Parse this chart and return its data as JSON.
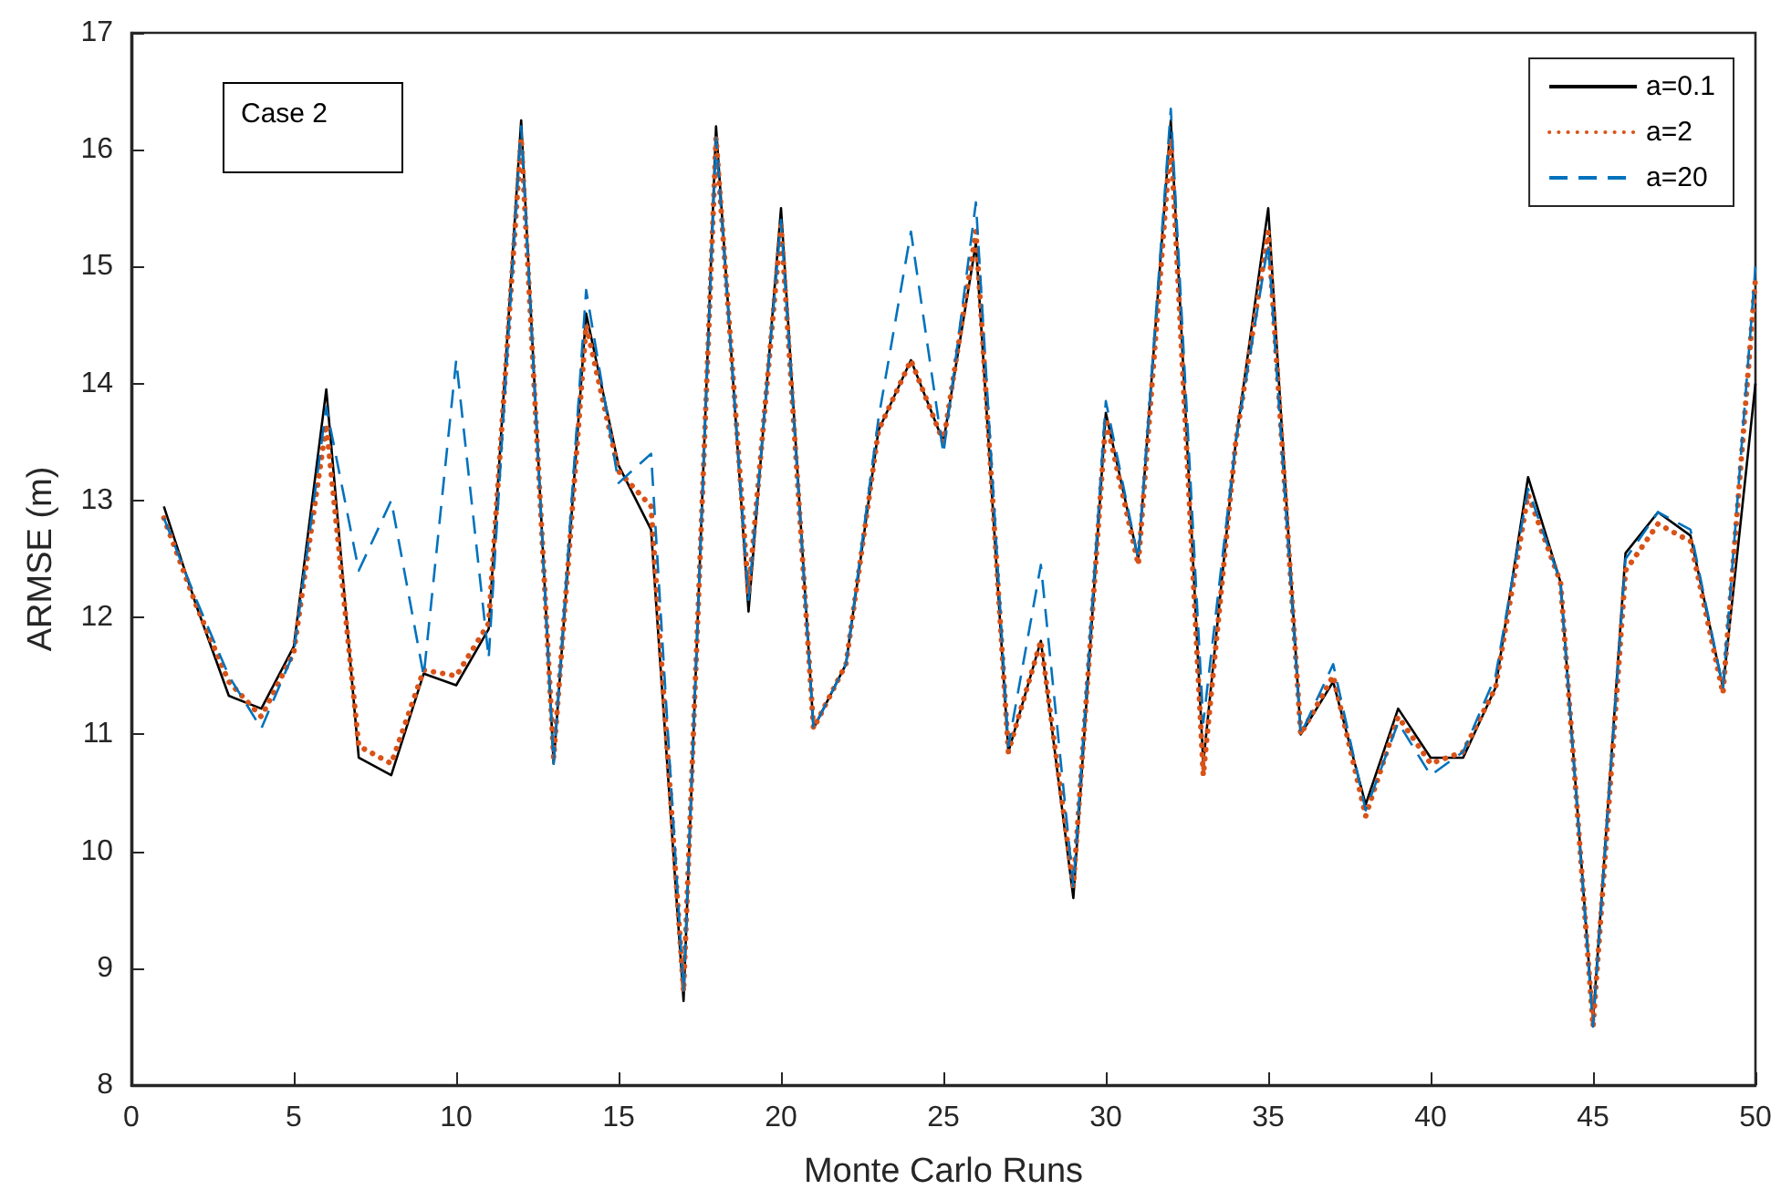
{
  "chart_data": {
    "type": "line",
    "xlabel": "Monte Carlo Runs",
    "ylabel": "ARMSE (m)",
    "annotations": [
      "Case 2"
    ],
    "x": [
      1,
      2,
      3,
      4,
      5,
      6,
      7,
      8,
      9,
      10,
      11,
      12,
      13,
      14,
      15,
      16,
      17,
      18,
      19,
      20,
      21,
      22,
      23,
      24,
      25,
      26,
      27,
      28,
      29,
      30,
      31,
      32,
      33,
      34,
      35,
      36,
      37,
      38,
      39,
      40,
      41,
      42,
      43,
      44,
      45,
      46,
      47,
      48,
      49,
      50
    ],
    "series": [
      {
        "name": "a=0.1",
        "color": "#000000",
        "line_style": "solid",
        "values": [
          12.95,
          12.1,
          11.33,
          11.22,
          11.75,
          13.95,
          10.8,
          10.65,
          11.52,
          11.42,
          11.9,
          16.25,
          10.75,
          14.6,
          13.3,
          12.75,
          8.72,
          16.2,
          12.05,
          15.5,
          11.05,
          11.6,
          13.6,
          14.2,
          13.5,
          15.2,
          10.85,
          11.8,
          9.6,
          13.75,
          12.5,
          16.25,
          10.75,
          13.5,
          15.5,
          11.0,
          11.45,
          10.4,
          11.22,
          10.8,
          10.8,
          11.4,
          13.2,
          12.3,
          8.55,
          12.55,
          12.9,
          12.7,
          11.4,
          14.0
        ]
      },
      {
        "name": "a=2",
        "color": "#d95319",
        "line_style": "dotted",
        "values": [
          12.85,
          12.1,
          11.45,
          11.15,
          11.7,
          13.65,
          10.9,
          10.75,
          11.55,
          11.5,
          11.95,
          16.1,
          10.8,
          14.5,
          13.25,
          12.95,
          8.8,
          16.1,
          12.2,
          15.35,
          11.05,
          11.6,
          13.6,
          14.2,
          13.5,
          15.3,
          10.85,
          11.8,
          9.7,
          13.7,
          12.45,
          16.1,
          10.65,
          13.5,
          15.3,
          11.0,
          11.5,
          10.3,
          11.15,
          10.75,
          10.85,
          11.4,
          13.05,
          12.3,
          8.5,
          12.4,
          12.8,
          12.65,
          11.35,
          14.9
        ]
      },
      {
        "name": "a=20",
        "color": "#0072bd",
        "line_style": "dashed",
        "values": [
          12.85,
          12.15,
          11.5,
          11.05,
          11.7,
          13.8,
          12.4,
          13.0,
          11.5,
          14.2,
          11.65,
          16.2,
          10.75,
          14.8,
          13.15,
          13.4,
          8.8,
          16.1,
          12.15,
          15.4,
          11.05,
          11.6,
          13.7,
          15.3,
          13.4,
          15.55,
          10.9,
          12.45,
          9.7,
          13.85,
          12.5,
          16.35,
          11.1,
          13.5,
          15.2,
          11.0,
          11.6,
          10.35,
          11.1,
          10.65,
          10.85,
          11.5,
          13.1,
          12.3,
          8.5,
          12.5,
          12.9,
          12.75,
          11.4,
          15.0
        ]
      }
    ],
    "xlim": [
      0,
      50
    ],
    "xticks": [
      0,
      5,
      10,
      15,
      20,
      25,
      30,
      35,
      40,
      45,
      50
    ],
    "ylim": [
      8,
      17
    ],
    "yticks": [
      8,
      9,
      10,
      11,
      12,
      13,
      14,
      15,
      16,
      17
    ],
    "grid": false,
    "legend": "top right",
    "marker": "none"
  }
}
